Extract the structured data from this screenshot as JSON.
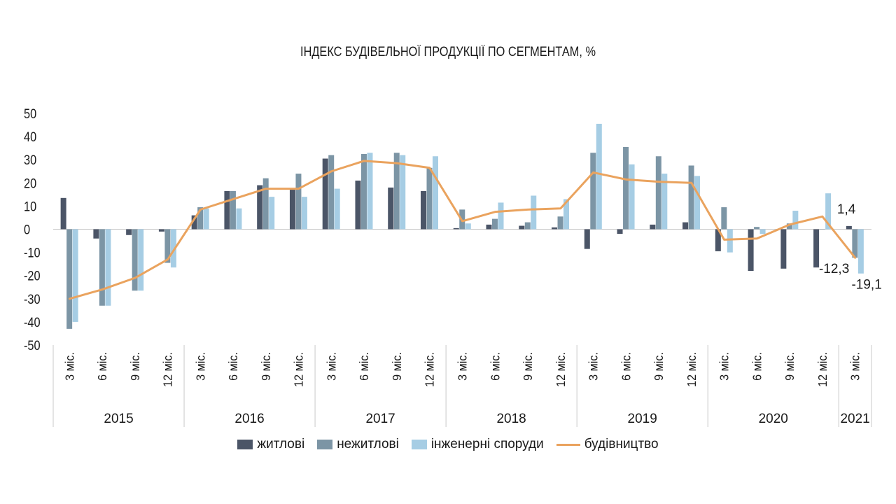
{
  "colors": {
    "residential": "#4b5567",
    "nonresidential": "#7c95a5",
    "engineering": "#a6cde4",
    "construction": "#eaa35e",
    "axis": "#c8c8c8",
    "text": "#1a1a1a"
  },
  "chart_data": {
    "type": "bar",
    "title": "ІНДЕКС БУДІВЕЛЬНОЇ ПРОДУКЦІЇ ПО СЕГМЕНТАМ, %",
    "ylim": [
      -50,
      50
    ],
    "yticks": [
      "50",
      "40",
      "30",
      "20",
      "10",
      "0",
      "-10",
      "-20",
      "-30",
      "-40",
      "-50"
    ],
    "categories": [
      "3 міс.",
      "6 міс.",
      "9 міс.",
      "12 міс.",
      "3 міс.",
      "6 міс.",
      "9 міс.",
      "12 міс.",
      "3 міс.",
      "6 міс.",
      "9 міс.",
      "12 міс.",
      "3 міс.",
      "6 міс.",
      "9 міс.",
      "12 міс.",
      "3 міс.",
      "6 міс.",
      "9 міс.",
      "12 міс.",
      "3 міс.",
      "6 міс.",
      "9 міс.",
      "12 міс.",
      "3 міс."
    ],
    "years": [
      {
        "label": "2015",
        "count": 4
      },
      {
        "label": "2016",
        "count": 4
      },
      {
        "label": "2017",
        "count": 4
      },
      {
        "label": "2018",
        "count": 4
      },
      {
        "label": "2019",
        "count": 4
      },
      {
        "label": "2020",
        "count": 4
      },
      {
        "label": "2021",
        "count": 1
      }
    ],
    "series": [
      {
        "name": "житлові",
        "key": "residential",
        "values": [
          13.5,
          -4,
          -2.5,
          -1,
          6,
          16.5,
          19,
          17.5,
          30.5,
          21,
          18,
          16.5,
          0.5,
          2,
          1.5,
          0.8,
          -8.5,
          -2,
          2,
          3,
          -9.5,
          -18,
          -17,
          -16.5,
          1.4
        ]
      },
      {
        "name": "нежитлові",
        "key": "nonresidential",
        "values": [
          -43,
          -33,
          -26.5,
          -14.5,
          9.5,
          16.5,
          22,
          24,
          32,
          32.5,
          33,
          26.5,
          8.5,
          4.5,
          3,
          5.5,
          33,
          35.5,
          31.5,
          27.5,
          9.5,
          1,
          2.5,
          0,
          -12.3
        ]
      },
      {
        "name": "інженерні споруди",
        "key": "engineering",
        "values": [
          -40,
          -33,
          -26.5,
          -16.5,
          9,
          9,
          14,
          14,
          17.5,
          33,
          32,
          31.5,
          2.5,
          11.5,
          14.5,
          13,
          45.5,
          28,
          24,
          23,
          -10,
          -2,
          8,
          15.5,
          -19.1
        ]
      },
      {
        "name": "будівництво",
        "key": "construction",
        "type": "line",
        "values": [
          -30,
          -26,
          -21,
          -13,
          8.5,
          13,
          17.5,
          17.5,
          25,
          29.5,
          28.5,
          26.5,
          3.5,
          7.5,
          8.5,
          9,
          24.5,
          21.5,
          20.5,
          20,
          -4.5,
          -4,
          2,
          5.5,
          -12.3
        ]
      }
    ],
    "annotations": [
      {
        "text": "1,4",
        "series": "residential",
        "index": 24
      },
      {
        "text": "-12,3",
        "series": "nonresidential",
        "index": 24
      },
      {
        "text": "-19,1",
        "series": "engineering",
        "index": 24
      }
    ],
    "legend": [
      "житлові",
      "нежитлові",
      "інженерні споруди",
      "будівництво"
    ],
    "legend_position": "bottom"
  }
}
